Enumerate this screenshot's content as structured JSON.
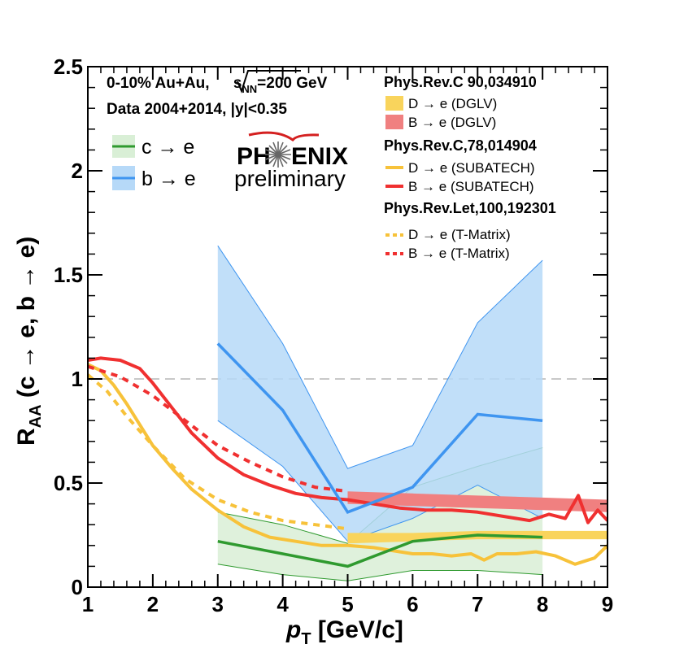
{
  "chart_data": {
    "type": "line",
    "xlabel": "p_T [GeV/c]",
    "xlabel_main": "p",
    "xlabel_sub": "T",
    "xlabel_unit": " [GeV/c]",
    "ylabel": "R_AA (c → e, b → e)",
    "ylabel_main": "R",
    "ylabel_sub": "AA",
    "ylabel_rest": " (c → e, b → e)",
    "xlim": [
      1,
      9
    ],
    "ylim": [
      0,
      2.5
    ],
    "x_ticks": [
      1,
      2,
      3,
      4,
      5,
      6,
      7,
      8,
      9
    ],
    "x_tick_labels": [
      "1",
      "2",
      "3",
      "4",
      "5",
      "6",
      "7",
      "8",
      "9"
    ],
    "y_ticks": [
      0,
      0.5,
      1,
      1.5,
      2,
      2.5
    ],
    "y_tick_labels": [
      "0",
      "0.5",
      "1",
      "1.5",
      "2",
      "2.5"
    ],
    "reference_line": 1.0,
    "info": {
      "line1_a": "0-10% Au+Au, ",
      "line1_s": "s",
      "line1_nn": "NN",
      "line1_b": "=200 GeV",
      "line2": "Data 2004+2014, |y|<0.35"
    },
    "logo": {
      "main_left": "PH",
      "main_right": "ENIX",
      "sub": "preliminary"
    },
    "data_legend": [
      {
        "label": "c → e",
        "color": "#2f9a2f",
        "band_color": "#d9efd6"
      },
      {
        "label": "b → e",
        "color": "#3f95f0",
        "band_color": "#b6d9f8"
      }
    ],
    "references": [
      {
        "title": "Phys.Rev.C 90,034910",
        "entries": [
          {
            "label": "D → e (DGLV)",
            "color": "#f9d45c",
            "style": "box"
          },
          {
            "label": "B → e (DGLV)",
            "color": "#f08080",
            "style": "box"
          }
        ]
      },
      {
        "title": "Phys.Rev.C,78,014904",
        "entries": [
          {
            "label": "D → e (SUBATECH)",
            "color": "#f7c23a",
            "style": "solid"
          },
          {
            "label": "B → e (SUBATECH)",
            "color": "#f03030",
            "style": "solid"
          }
        ]
      },
      {
        "title": "Phys.Rev.Let,100,192301",
        "entries": [
          {
            "label": "D → e (T-Matrix)",
            "color": "#f7c23a",
            "style": "dashed"
          },
          {
            "label": "B → e (T-Matrix)",
            "color": "#f03030",
            "style": "dashed"
          }
        ]
      }
    ],
    "series": [
      {
        "name": "c → e",
        "kind": "data",
        "color": "#2f9a2f",
        "band_color": "#d9efd6",
        "x": [
          3,
          4,
          5,
          6,
          7,
          8
        ],
        "y": [
          0.22,
          0.16,
          0.1,
          0.22,
          0.25,
          0.24
        ],
        "band_low": [
          0.11,
          0.06,
          0.03,
          0.08,
          0.08,
          0.06
        ],
        "band_high": [
          0.36,
          0.3,
          0.21,
          0.48,
          0.58,
          0.67
        ]
      },
      {
        "name": "b → e",
        "kind": "data",
        "color": "#3f95f0",
        "band_color": "#b6d9f8",
        "x": [
          3,
          4,
          5,
          6,
          7,
          8
        ],
        "y": [
          1.17,
          0.85,
          0.36,
          0.48,
          0.83,
          0.8
        ],
        "band_low": [
          0.8,
          0.58,
          0.22,
          0.33,
          0.49,
          0.33
        ],
        "band_high": [
          1.64,
          1.17,
          0.57,
          0.68,
          1.27,
          1.57
        ]
      },
      {
        "name": "D → e (DGLV)",
        "kind": "band",
        "color": "#f9d45c",
        "x": [
          5,
          6,
          7,
          8,
          9
        ],
        "band_low": [
          0.21,
          0.22,
          0.23,
          0.23,
          0.23
        ],
        "band_high": [
          0.26,
          0.26,
          0.27,
          0.27,
          0.27
        ]
      },
      {
        "name": "B → e (DGLV)",
        "kind": "band",
        "color": "#f08080",
        "x": [
          5,
          6,
          7,
          8,
          9
        ],
        "band_low": [
          0.4,
          0.39,
          0.38,
          0.37,
          0.36
        ],
        "band_high": [
          0.46,
          0.45,
          0.44,
          0.43,
          0.42
        ]
      },
      {
        "name": "D → e (SUBATECH)",
        "kind": "line",
        "dashed": false,
        "color": "#f7c23a",
        "x": [
          1.0,
          1.2,
          1.4,
          1.6,
          1.8,
          2.0,
          2.3,
          2.6,
          3.0,
          3.4,
          3.8,
          4.2,
          4.6,
          5.0,
          5.4,
          5.8,
          6.0,
          6.3,
          6.6,
          6.9,
          7.1,
          7.3,
          7.6,
          7.9,
          8.2,
          8.5,
          8.8,
          9.0
        ],
        "y": [
          1.07,
          1.04,
          0.97,
          0.88,
          0.78,
          0.68,
          0.57,
          0.47,
          0.37,
          0.29,
          0.24,
          0.22,
          0.2,
          0.2,
          0.19,
          0.17,
          0.16,
          0.16,
          0.15,
          0.16,
          0.13,
          0.16,
          0.16,
          0.17,
          0.15,
          0.11,
          0.14,
          0.2
        ]
      },
      {
        "name": "B → e (SUBATECH)",
        "kind": "line",
        "dashed": false,
        "color": "#f03030",
        "x": [
          1.0,
          1.2,
          1.5,
          1.8,
          2.0,
          2.3,
          2.6,
          3.0,
          3.4,
          3.8,
          4.2,
          4.6,
          5.0,
          5.4,
          5.8,
          6.2,
          6.6,
          7.0,
          7.4,
          7.8,
          8.1,
          8.35,
          8.55,
          8.7,
          8.85,
          9.0
        ],
        "y": [
          1.09,
          1.1,
          1.09,
          1.05,
          0.98,
          0.86,
          0.74,
          0.62,
          0.54,
          0.49,
          0.45,
          0.43,
          0.42,
          0.4,
          0.38,
          0.37,
          0.37,
          0.36,
          0.34,
          0.32,
          0.35,
          0.33,
          0.44,
          0.31,
          0.37,
          0.32
        ]
      },
      {
        "name": "D → e (T-Matrix)",
        "kind": "line",
        "dashed": true,
        "color": "#f7c23a",
        "x": [
          1.0,
          1.3,
          1.6,
          2.0,
          2.5,
          3.0,
          3.5,
          4.0,
          4.5,
          5.0
        ],
        "y": [
          1.02,
          0.94,
          0.82,
          0.68,
          0.52,
          0.42,
          0.36,
          0.32,
          0.3,
          0.28
        ]
      },
      {
        "name": "B → e (T-Matrix)",
        "kind": "line",
        "dashed": true,
        "color": "#f03030",
        "x": [
          1.0,
          1.5,
          2.0,
          2.5,
          3.0,
          3.5,
          4.0,
          4.5,
          5.0
        ],
        "y": [
          1.06,
          1.01,
          0.92,
          0.8,
          0.68,
          0.6,
          0.53,
          0.48,
          0.46
        ]
      }
    ]
  }
}
